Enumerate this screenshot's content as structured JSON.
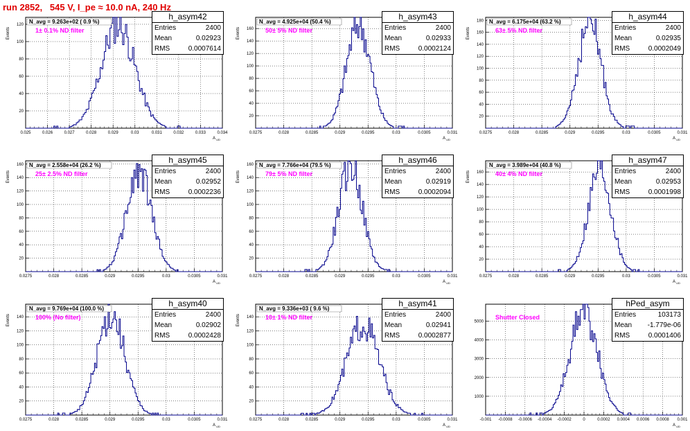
{
  "page_title": "run 2852,   545 V, I_pe ≈ 10.0 nA, 240 Hz",
  "stats_labels": {
    "entries": "Entries",
    "mean": "Mean",
    "rms": "RMS"
  },
  "colors": {
    "histogram": "#00008b",
    "title": "#e00000",
    "annotation": "#ff00ff"
  },
  "chart_data": [
    {
      "type": "histogram",
      "name": "h_asym42",
      "navg": "N_avg = 9.263e+02 ( 0.9 %)",
      "filter": "1± 0.1% ND filter",
      "entries": "2400",
      "mean": "0.02923",
      "rms": "0.0007614",
      "mean_val": 0.02923,
      "rms_val": 0.0007614,
      "peak": 120,
      "xlim": [
        0.025,
        0.034
      ],
      "xticks": [
        0.025,
        0.026,
        0.027,
        0.028,
        0.029,
        0.03,
        0.031,
        0.032,
        0.033,
        0.034
      ],
      "xticklabels": [
        "0.025",
        "0.026",
        "0.027",
        "0.028",
        "0.029",
        "0.03",
        "0.031",
        "0.032",
        "0.033",
        "0.034"
      ],
      "ylim": [
        0,
        128
      ],
      "yticks": [
        20,
        40,
        60,
        80,
        100,
        120
      ],
      "xlabel": "A_UD",
      "ylabel": "Events",
      "bins": 140
    },
    {
      "type": "histogram",
      "name": "h_asym43",
      "navg": "N_avg = 4.925e+04 (50.4 %)",
      "filter": "50± 5% ND filter",
      "entries": "2400",
      "mean": "0.02933",
      "rms": "0.0002124",
      "mean_val": 0.02933,
      "rms_val": 0.0002124,
      "peak": 168,
      "xlim": [
        0.0275,
        0.031
      ],
      "xticks": [
        0.0275,
        0.028,
        0.0285,
        0.029,
        0.0295,
        0.03,
        0.0305,
        0.031
      ],
      "xticklabels": [
        "0.0275",
        "0.028",
        "0.0285",
        "0.029",
        "0.0295",
        "0.03",
        "0.0305",
        "0.031"
      ],
      "ylim": [
        0,
        178
      ],
      "yticks": [
        20,
        40,
        60,
        80,
        100,
        120,
        140,
        160
      ],
      "xlabel": "A_UD",
      "ylabel": "Events",
      "bins": 160
    },
    {
      "type": "histogram",
      "name": "h_asym44",
      "navg": "N_avg = 6.175e+04 (63.2 %)",
      "filter": "63± 5% ND filter",
      "entries": "2400",
      "mean": "0.02935",
      "rms": "0.0002049",
      "mean_val": 0.02935,
      "rms_val": 0.0002049,
      "peak": 178,
      "xlim": [
        0.0275,
        0.031
      ],
      "xticks": [
        0.0275,
        0.028,
        0.0285,
        0.029,
        0.0295,
        0.03,
        0.0305,
        0.031
      ],
      "xticklabels": [
        "0.0275",
        "0.028",
        "0.0285",
        "0.029",
        "0.0295",
        "0.03",
        "0.0305",
        "0.031"
      ],
      "ylim": [
        0,
        185
      ],
      "yticks": [
        20,
        40,
        60,
        80,
        100,
        120,
        140,
        160,
        180
      ],
      "xlabel": "A_UD",
      "ylabel": "Events",
      "bins": 160
    },
    {
      "type": "histogram",
      "name": "h_asym45",
      "navg": "N_avg = 2.558e+04 (26.2 %)",
      "filter": "25± 2.5% ND filter",
      "entries": "2400",
      "mean": "0.02952",
      "rms": "0.0002236",
      "mean_val": 0.02952,
      "rms_val": 0.0002236,
      "peak": 148,
      "xlim": [
        0.0275,
        0.031
      ],
      "xticks": [
        0.0275,
        0.028,
        0.0285,
        0.029,
        0.0295,
        0.03,
        0.0305,
        0.031
      ],
      "xticklabels": [
        "0.0275",
        "0.028",
        "0.0285",
        "0.029",
        "0.0295",
        "0.03",
        "0.0305",
        "0.031"
      ],
      "ylim": [
        0,
        165
      ],
      "yticks": [
        20,
        40,
        60,
        80,
        100,
        120,
        140,
        160
      ],
      "xlabel": "A_UD",
      "ylabel": "Events",
      "bins": 160
    },
    {
      "type": "histogram",
      "name": "h_asym46",
      "navg": "N_avg = 7.766e+04 (79.5 %)",
      "filter": "79± 5% ND filter",
      "entries": "2400",
      "mean": "0.02919",
      "rms": "0.0002094",
      "mean_val": 0.02919,
      "rms_val": 0.0002094,
      "peak": 158,
      "xlim": [
        0.0275,
        0.031
      ],
      "xticks": [
        0.0275,
        0.028,
        0.0285,
        0.029,
        0.0295,
        0.03,
        0.0305,
        0.031
      ],
      "xticklabels": [
        "0.0275",
        "0.028",
        "0.0285",
        "0.029",
        "0.0295",
        "0.03",
        "0.0305",
        "0.031"
      ],
      "ylim": [
        0,
        165
      ],
      "yticks": [
        20,
        40,
        60,
        80,
        100,
        120,
        140,
        160
      ],
      "xlabel": "A_UD",
      "ylabel": "Events",
      "bins": 160
    },
    {
      "type": "histogram",
      "name": "h_asym47",
      "navg": "N_avg = 3.989e+04 (40.8 %)",
      "filter": "40± 4% ND filter",
      "entries": "2400",
      "mean": "0.02953",
      "rms": "0.0001998",
      "mean_val": 0.02953,
      "rms_val": 0.0001998,
      "peak": 168,
      "xlim": [
        0.0275,
        0.031
      ],
      "xticks": [
        0.0275,
        0.028,
        0.0285,
        0.029,
        0.0295,
        0.03,
        0.0305,
        0.031
      ],
      "xticklabels": [
        "0.0275",
        "0.028",
        "0.0285",
        "0.029",
        "0.0295",
        "0.03",
        "0.0305",
        "0.031"
      ],
      "ylim": [
        0,
        178
      ],
      "yticks": [
        20,
        40,
        60,
        80,
        100,
        120,
        140,
        160
      ],
      "xlabel": "A_UD",
      "ylabel": "Events",
      "bins": 160
    },
    {
      "type": "histogram",
      "name": "h_asym40",
      "navg": "N_avg = 9.769e+04 (100.0 %)",
      "filter": "100% (No filter)",
      "entries": "2400",
      "mean": "0.02902",
      "rms": "0.0002428",
      "mean_val": 0.02902,
      "rms_val": 0.0002428,
      "peak": 145,
      "xlim": [
        0.0275,
        0.031
      ],
      "xticks": [
        0.0275,
        0.028,
        0.0285,
        0.029,
        0.0295,
        0.03,
        0.0305,
        0.031
      ],
      "xticklabels": [
        "0.0275",
        "0.028",
        "0.0285",
        "0.029",
        "0.0295",
        "0.03",
        "0.0305",
        "0.031"
      ],
      "ylim": [
        0,
        158
      ],
      "yticks": [
        20,
        40,
        60,
        80,
        100,
        120,
        140
      ],
      "xlabel": "A_UD",
      "ylabel": "Events",
      "bins": 160
    },
    {
      "type": "histogram",
      "name": "h_asym41",
      "navg": "N_avg = 9.336e+03 ( 9.6 %)",
      "filter": "10± 1% ND filter",
      "entries": "2400",
      "mean": "0.02941",
      "rms": "0.0002877",
      "mean_val": 0.02941,
      "rms_val": 0.0002877,
      "peak": 130,
      "xlim": [
        0.0275,
        0.031
      ],
      "xticks": [
        0.0275,
        0.028,
        0.0285,
        0.029,
        0.0295,
        0.03,
        0.0305,
        0.031
      ],
      "xticklabels": [
        "0.0275",
        "0.028",
        "0.0285",
        "0.029",
        "0.0295",
        "0.03",
        "0.0305",
        "0.031"
      ],
      "ylim": [
        0,
        158
      ],
      "yticks": [
        20,
        40,
        60,
        80,
        100,
        120,
        140
      ],
      "xlabel": "A_UD",
      "ylabel": "Events",
      "bins": 160
    },
    {
      "type": "histogram",
      "name": "hPed_asym",
      "navg": "",
      "filter": "Shutter Closed",
      "entries": "103173",
      "mean": "-1.779e-06",
      "rms": "0.0001406",
      "mean_val": -1.779e-06,
      "rms_val": 0.0001406,
      "peak": 5500,
      "xlim": [
        -0.001,
        0.001
      ],
      "xticks": [
        -0.001,
        -0.0008,
        -0.0006,
        -0.0004,
        -0.0002,
        0,
        0.0002,
        0.0004,
        0.0006,
        0.0008,
        0.001
      ],
      "xticklabels": [
        "-0.001",
        "-0.0008",
        "-0.0006",
        "-0.0004",
        "-0.0002",
        "0",
        "0.0002",
        "0.0004",
        "0.0006",
        "0.0008",
        "0.001"
      ],
      "ylim": [
        0,
        5900
      ],
      "yticks": [
        1000,
        2000,
        3000,
        4000,
        5000
      ],
      "xlabel": "A_UD",
      "ylabel": "",
      "bins": 160
    }
  ]
}
